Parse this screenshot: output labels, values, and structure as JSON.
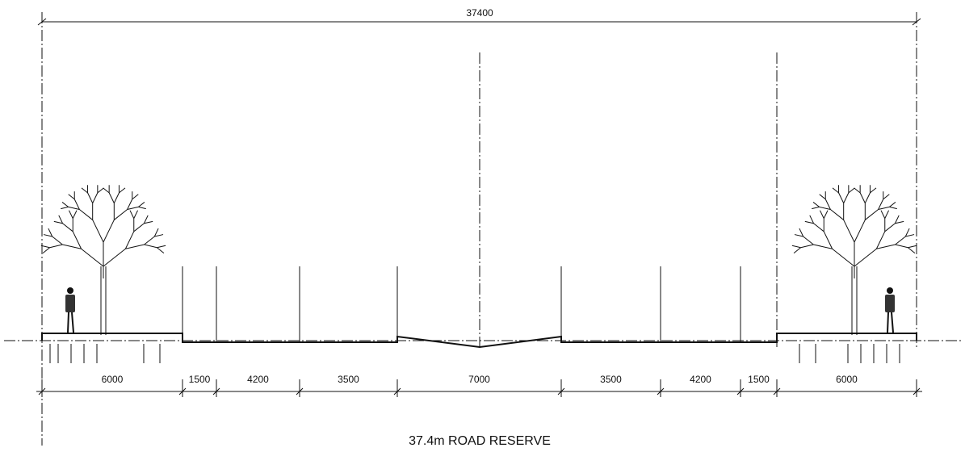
{
  "dimensions": {
    "overall": "37400",
    "segments": [
      "6000",
      "1500",
      "4200",
      "3500",
      "7000",
      "3500",
      "4200",
      "1500",
      "6000"
    ]
  },
  "title": "37.4m ROAD RESERVE"
}
